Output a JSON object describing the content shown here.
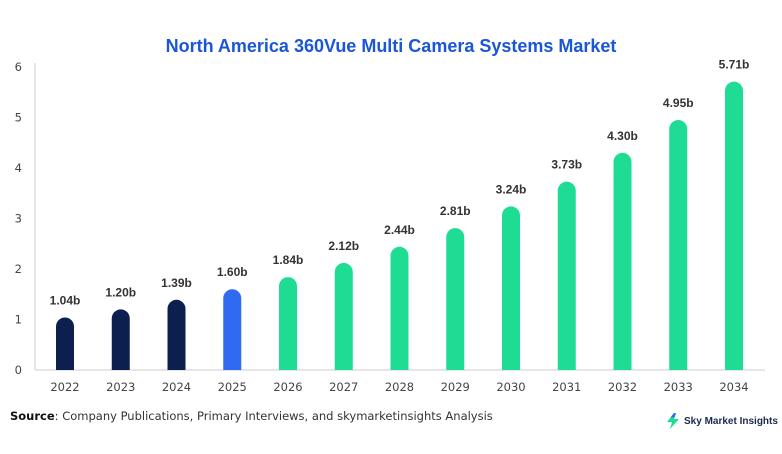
{
  "chart_data": {
    "type": "bar",
    "title": "North America 360Vue Multi Camera Systems Market",
    "categories": [
      "2022",
      "2023",
      "2024",
      "2025",
      "2026",
      "2027",
      "2028",
      "2029",
      "2030",
      "2031",
      "2032",
      "2033",
      "2034"
    ],
    "values": [
      1.04,
      1.2,
      1.39,
      1.6,
      1.84,
      2.12,
      2.44,
      2.81,
      3.24,
      3.73,
      4.3,
      4.95,
      5.71
    ],
    "data_labels": [
      "1.04b",
      "1.20b",
      "1.39b",
      "1.60b",
      "1.84b",
      "2.12b",
      "2.44b",
      "2.81b",
      "3.24b",
      "3.73b",
      "4.30b",
      "4.95b",
      "5.71b"
    ],
    "bar_colors": [
      "#0d1f4f",
      "#0d1f4f",
      "#0d1f4f",
      "#2f6bf0",
      "#1fdc94",
      "#1fdc94",
      "#1fdc94",
      "#1fdc94",
      "#1fdc94",
      "#1fdc94",
      "#1fdc94",
      "#1fdc94",
      "#1fdc94"
    ],
    "y_ticks": [
      0,
      1,
      2,
      3,
      4,
      5,
      6
    ],
    "ylim": [
      0,
      6
    ],
    "xlabel": "",
    "ylabel": "",
    "grid": false,
    "colors": {
      "title": "#1a56d6",
      "axis": "#cccccc"
    }
  },
  "footer": {
    "source_label": "Source",
    "source_text": ": Company Publications, Primary Interviews, and skymarketinsights Analysis",
    "brand_name": "Sky Market Insights",
    "brand_icon": "lightning-bolt-icon"
  }
}
